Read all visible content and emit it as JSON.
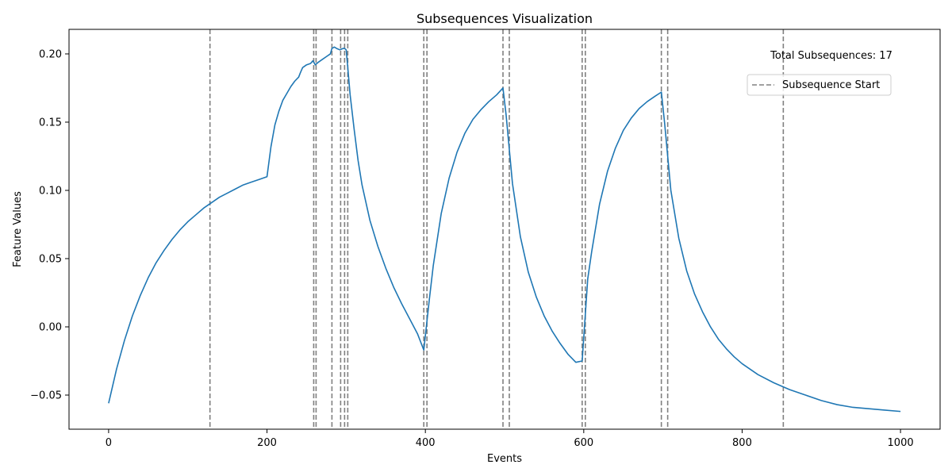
{
  "chart_data": {
    "type": "line",
    "title": "Subsequences Visualization",
    "xlabel": "Events",
    "ylabel": "Feature Values",
    "xlim": [
      -50,
      1050
    ],
    "ylim": [
      -0.075,
      0.218
    ],
    "x_ticks": [
      0,
      200,
      400,
      600,
      800,
      1000
    ],
    "x_tick_labels": [
      "0",
      "200",
      "400",
      "600",
      "800",
      "1000"
    ],
    "y_ticks": [
      -0.05,
      0.0,
      0.05,
      0.1,
      0.15,
      0.2
    ],
    "y_tick_labels": [
      "−0.05",
      "0.00",
      "0.05",
      "0.10",
      "0.15",
      "0.20"
    ],
    "grid": false,
    "legend": {
      "placement": "top-right",
      "entries": [
        "Subsequence Start"
      ]
    },
    "annotation": "Total Subsequences: 17",
    "colors": {
      "line": "#1f77b4",
      "vlines": "#808080",
      "axes": "#000000"
    },
    "series": [
      {
        "name": "",
        "x": [
          0,
          10,
          20,
          30,
          40,
          50,
          60,
          70,
          80,
          90,
          100,
          110,
          120,
          130,
          140,
          150,
          160,
          170,
          180,
          190,
          200,
          205,
          210,
          215,
          220,
          225,
          230,
          235,
          240,
          242,
          245,
          250,
          255,
          258,
          261,
          265,
          270,
          275,
          280,
          282,
          285,
          288,
          292,
          296,
          298,
          300,
          302,
          305,
          310,
          315,
          320,
          330,
          340,
          350,
          360,
          370,
          380,
          390,
          398,
          405,
          410,
          420,
          430,
          440,
          450,
          460,
          470,
          480,
          490,
          498,
          502,
          506,
          510,
          520,
          530,
          540,
          550,
          560,
          570,
          580,
          590,
          598,
          605,
          610,
          620,
          630,
          640,
          650,
          660,
          670,
          680,
          690,
          698,
          702,
          706,
          710,
          720,
          730,
          740,
          750,
          760,
          770,
          780,
          790,
          800,
          820,
          840,
          860,
          880,
          900,
          920,
          940,
          960,
          980,
          1000
        ],
        "y": [
          -0.056,
          -0.031,
          -0.01,
          0.008,
          0.023,
          0.036,
          0.047,
          0.056,
          0.064,
          0.071,
          0.077,
          0.082,
          0.087,
          0.091,
          0.095,
          0.098,
          0.101,
          0.104,
          0.106,
          0.108,
          0.11,
          0.132,
          0.148,
          0.158,
          0.166,
          0.171,
          0.176,
          0.18,
          0.183,
          0.186,
          0.19,
          0.192,
          0.193,
          0.195,
          0.192,
          0.194,
          0.196,
          0.198,
          0.2,
          0.204,
          0.205,
          0.204,
          0.203,
          0.204,
          0.204,
          0.203,
          0.19,
          0.17,
          0.145,
          0.122,
          0.104,
          0.078,
          0.059,
          0.043,
          0.029,
          0.017,
          0.006,
          -0.005,
          -0.017,
          0.02,
          0.045,
          0.083,
          0.109,
          0.128,
          0.142,
          0.152,
          0.159,
          0.165,
          0.17,
          0.175,
          0.155,
          0.13,
          0.105,
          0.066,
          0.04,
          0.022,
          0.008,
          -0.003,
          -0.012,
          -0.02,
          -0.026,
          -0.025,
          0.035,
          0.055,
          0.09,
          0.114,
          0.131,
          0.144,
          0.153,
          0.16,
          0.165,
          0.169,
          0.172,
          0.15,
          0.125,
          0.1,
          0.065,
          0.041,
          0.024,
          0.011,
          0.0,
          -0.009,
          -0.016,
          -0.022,
          -0.027,
          -0.035,
          -0.041,
          -0.046,
          -0.05,
          -0.054,
          -0.057,
          -0.059,
          -0.06,
          -0.061,
          -0.062
        ]
      }
    ],
    "subsequence_starts": [
      128,
      259,
      262,
      282,
      293,
      298,
      302,
      398,
      402,
      498,
      506,
      598,
      602,
      698,
      706,
      852
    ]
  }
}
